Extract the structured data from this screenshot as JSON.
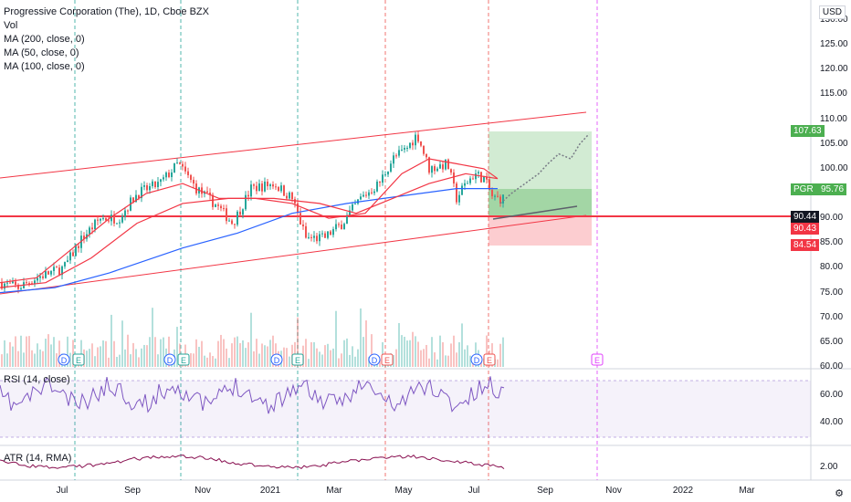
{
  "legend": {
    "title": "Progressive Corporation (The), 1D, Cboe BZX",
    "vol": "Vol",
    "ma200": "MA (200, close, 0)",
    "ma50": "MA (50, close, 0)",
    "ma100": "MA (100, close, 0)"
  },
  "currency": "USD",
  "rsi_label": "RSI (14, close)",
  "atr_label": "ATR (14, RMA)",
  "price_axis": [
    "130.00",
    "125.00",
    "120.00",
    "115.00",
    "110.00",
    "105.00",
    "100.00",
    "95.00",
    "90.00",
    "85.00",
    "80.00",
    "75.00",
    "70.00",
    "65.00",
    "60.00"
  ],
  "rsi_axis": [
    "60.00",
    "40.00"
  ],
  "atr_axis": [
    "2.00"
  ],
  "x_axis": [
    "Jul",
    "Sep",
    "Nov",
    "2021",
    "Mar",
    "May",
    "Jul",
    "Sep",
    "Nov",
    "2022",
    "Mar"
  ],
  "tags": {
    "target": "107.63",
    "symbol": "PGR",
    "last": "95.76",
    "line1": "90.44",
    "line2": "90.43",
    "stop": "84.54"
  },
  "event_markers": [
    "D",
    "E",
    "D",
    "E",
    "D",
    "E",
    "D",
    "E",
    "D",
    "E",
    "E"
  ],
  "colors": {
    "up": "#26a69a",
    "down": "#ef5350",
    "ma200": "#2962ff",
    "ma50": "#f23645",
    "ma100": "#f23645",
    "channel": "#f23645",
    "target_zone": "#4caf50",
    "stop_zone": "#f23645",
    "rsi": "#7e57c2",
    "atr": "#880e4f"
  },
  "settings_icon": "gear-icon"
}
